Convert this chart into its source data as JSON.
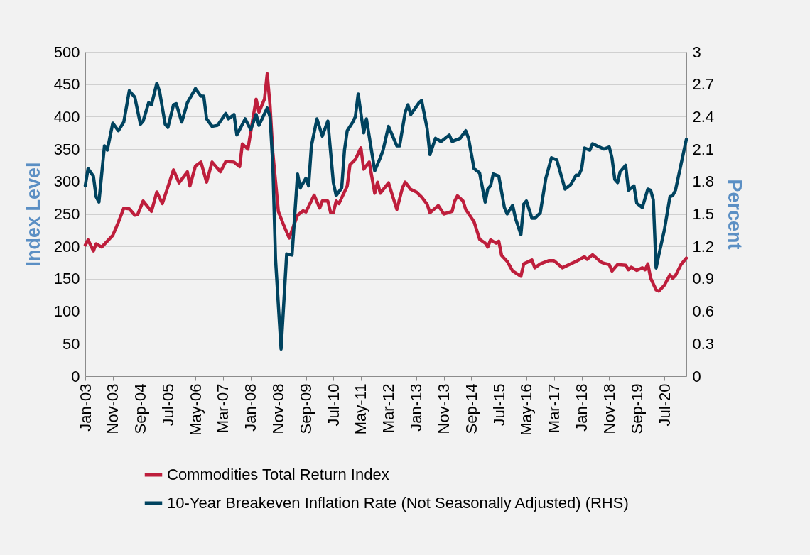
{
  "chart_data": {
    "type": "line",
    "ylabel": "Index Level",
    "y2label": "Percent",
    "ylim": [
      0,
      500
    ],
    "yticks": [
      0,
      50,
      100,
      150,
      200,
      250,
      300,
      350,
      400,
      450,
      500
    ],
    "y2lim": [
      0,
      3
    ],
    "y2ticks": [
      0,
      0.3,
      0.6,
      0.9,
      1.2,
      1.5,
      1.8,
      2.1,
      2.4,
      2.7,
      3
    ],
    "xlim": [
      "2003-01",
      "2021-03"
    ],
    "xticks": [
      {
        "value": "2003-01",
        "label": "Jan-03"
      },
      {
        "value": "2003-11",
        "label": "Nov-03"
      },
      {
        "value": "2004-09",
        "label": "Sep-04"
      },
      {
        "value": "2005-07",
        "label": "Jul-05"
      },
      {
        "value": "2006-05",
        "label": "May-06"
      },
      {
        "value": "2007-03",
        "label": "Mar-07"
      },
      {
        "value": "2008-01",
        "label": "Jan-08"
      },
      {
        "value": "2008-11",
        "label": "Nov-08"
      },
      {
        "value": "2009-09",
        "label": "Sep-09"
      },
      {
        "value": "2010-07",
        "label": "Jul-10"
      },
      {
        "value": "2011-05",
        "label": "May-11"
      },
      {
        "value": "2012-03",
        "label": "Mar-12"
      },
      {
        "value": "2013-01",
        "label": "Jan-13"
      },
      {
        "value": "2013-11",
        "label": "Nov-13"
      },
      {
        "value": "2014-09",
        "label": "Sep-14"
      },
      {
        "value": "2015-07",
        "label": "Jul-15"
      },
      {
        "value": "2016-05",
        "label": "May-16"
      },
      {
        "value": "2017-03",
        "label": "Mar-17"
      },
      {
        "value": "2018-01",
        "label": "Jan-18"
      },
      {
        "value": "2018-11",
        "label": "Nov-18"
      },
      {
        "value": "2019-09",
        "label": "Sep-19"
      },
      {
        "value": "2020-07",
        "label": "Jul-20"
      }
    ],
    "grid": "y",
    "legend": "bottom",
    "series": [
      {
        "name": "Commodities Total Return Index",
        "color": "#be1e3c",
        "x": [
          "2003-01",
          "2003-02",
          "2003-04",
          "2003-05",
          "2003-07",
          "2003-09",
          "2003-11",
          "2004-01",
          "2004-03",
          "2004-05",
          "2004-07",
          "2004-08",
          "2004-10",
          "2005-01",
          "2005-03",
          "2005-05",
          "2005-09",
          "2005-11",
          "2006-02",
          "2006-03",
          "2006-05",
          "2006-07",
          "2006-09",
          "2006-11",
          "2007-02",
          "2007-04",
          "2007-07",
          "2007-09",
          "2007-10",
          "2007-12",
          "2008-03",
          "2008-04",
          "2008-06",
          "2008-07",
          "2008-08",
          "2008-09",
          "2008-11",
          "2009-01",
          "2009-03",
          "2009-06",
          "2009-08",
          "2009-09",
          "2009-12",
          "2010-02",
          "2010-03",
          "2010-05",
          "2010-06",
          "2010-07",
          "2010-08",
          "2010-09",
          "2010-12",
          "2011-01",
          "2011-03",
          "2011-05",
          "2011-06",
          "2011-08",
          "2011-10",
          "2011-11",
          "2011-12",
          "2012-03",
          "2012-04",
          "2012-06",
          "2012-08",
          "2012-09",
          "2012-11",
          "2013-01",
          "2013-03",
          "2013-05",
          "2013-06",
          "2013-09",
          "2013-11",
          "2014-02",
          "2014-03",
          "2014-04",
          "2014-06",
          "2014-07",
          "2014-10",
          "2014-12",
          "2015-02",
          "2015-03",
          "2015-04",
          "2015-06",
          "2015-07",
          "2015-08",
          "2015-10",
          "2015-12",
          "2016-03",
          "2016-04",
          "2016-07",
          "2016-08",
          "2016-10",
          "2017-01",
          "2017-03",
          "2017-06",
          "2017-09",
          "2017-11",
          "2018-02",
          "2018-03",
          "2018-05",
          "2018-08",
          "2018-09",
          "2018-11",
          "2018-12",
          "2019-02",
          "2019-05",
          "2019-06",
          "2019-07",
          "2019-09",
          "2019-11",
          "2019-12",
          "2020-01",
          "2020-02",
          "2020-04",
          "2020-05",
          "2020-07",
          "2020-09",
          "2020-10",
          "2020-11",
          "2021-01",
          "2021-03"
        ],
        "values": [
          202,
          210,
          193,
          204,
          199,
          208,
          217,
          237,
          259,
          258,
          248,
          249,
          270,
          254,
          284,
          266,
          318,
          298,
          315,
          293,
          324,
          330,
          299,
          330,
          315,
          331,
          330,
          323,
          358,
          350,
          427,
          407,
          427,
          466,
          418,
          345,
          254,
          232,
          213,
          248,
          255,
          253,
          279,
          259,
          270,
          270,
          252,
          252,
          270,
          266,
          293,
          326,
          334,
          352,
          319,
          330,
          282,
          299,
          282,
          298,
          284,
          257,
          290,
          299,
          288,
          284,
          276,
          265,
          252,
          263,
          250,
          254,
          270,
          278,
          270,
          257,
          238,
          211,
          205,
          199,
          210,
          205,
          208,
          186,
          177,
          162,
          154,
          173,
          179,
          167,
          173,
          178,
          178,
          167,
          173,
          177,
          184,
          180,
          187,
          176,
          174,
          172,
          162,
          172,
          171,
          164,
          168,
          163,
          167,
          164,
          173,
          151,
          133,
          131,
          140,
          156,
          151,
          155,
          172,
          182
        ]
      },
      {
        "name": "10-Year Breakeven Inflation Rate (Not Seasonally Adjusted) (RHS)",
        "color": "#00435f",
        "axis": "y2",
        "x": [
          "2003-01",
          "2003-02",
          "2003-04",
          "2003-05",
          "2003-06",
          "2003-08",
          "2003-09",
          "2003-11",
          "2004-01",
          "2004-03",
          "2004-05",
          "2004-07",
          "2004-09",
          "2004-10",
          "2004-12",
          "2005-01",
          "2005-03",
          "2005-04",
          "2005-06",
          "2005-07",
          "2005-09",
          "2005-10",
          "2005-12",
          "2006-02",
          "2006-05",
          "2006-07",
          "2006-08",
          "2006-09",
          "2006-11",
          "2007-01",
          "2007-04",
          "2007-05",
          "2007-07",
          "2007-08",
          "2007-11",
          "2008-01",
          "2008-03",
          "2008-04",
          "2008-07",
          "2008-08",
          "2008-09",
          "2008-10",
          "2008-12",
          "2009-02",
          "2009-04",
          "2009-06",
          "2009-07",
          "2009-09",
          "2009-10",
          "2009-11",
          "2010-01",
          "2010-03",
          "2010-05",
          "2010-07",
          "2010-08",
          "2010-10",
          "2010-11",
          "2010-12",
          "2011-02",
          "2011-03",
          "2011-04",
          "2011-06",
          "2011-07",
          "2011-10",
          "2011-12",
          "2012-01",
          "2012-03",
          "2012-06",
          "2012-07",
          "2012-09",
          "2012-10",
          "2012-11",
          "2013-02",
          "2013-03",
          "2013-05",
          "2013-06",
          "2013-08",
          "2013-10",
          "2014-01",
          "2014-02",
          "2014-05",
          "2014-07",
          "2014-08",
          "2014-10",
          "2014-12",
          "2015-02",
          "2015-03",
          "2015-04",
          "2015-05",
          "2015-07",
          "2015-09",
          "2015-10",
          "2015-12",
          "2016-01",
          "2016-03",
          "2016-04",
          "2016-05",
          "2016-07",
          "2016-08",
          "2016-10",
          "2016-12",
          "2017-02",
          "2017-04",
          "2017-07",
          "2017-09",
          "2017-11",
          "2017-12",
          "2018-01",
          "2018-02",
          "2018-04",
          "2018-05",
          "2018-09",
          "2018-11",
          "2018-12",
          "2019-01",
          "2019-02",
          "2019-03",
          "2019-05",
          "2019-06",
          "2019-08",
          "2019-09",
          "2019-11",
          "2020-01",
          "2020-02",
          "2020-03",
          "2020-04",
          "2020-05",
          "2020-07",
          "2020-09",
          "2020-10",
          "2020-11",
          "2021-01",
          "2021-03"
        ],
        "values": [
          1.76,
          1.92,
          1.85,
          1.66,
          1.61,
          2.13,
          2.09,
          2.34,
          2.27,
          2.35,
          2.64,
          2.58,
          2.33,
          2.36,
          2.53,
          2.51,
          2.71,
          2.63,
          2.33,
          2.3,
          2.51,
          2.52,
          2.35,
          2.53,
          2.66,
          2.59,
          2.59,
          2.38,
          2.31,
          2.32,
          2.43,
          2.38,
          2.42,
          2.23,
          2.38,
          2.28,
          2.42,
          2.32,
          2.48,
          2.4,
          1.96,
          1.08,
          0.25,
          1.13,
          1.12,
          1.87,
          1.74,
          1.83,
          1.76,
          2.13,
          2.38,
          2.22,
          2.36,
          1.79,
          1.67,
          1.74,
          2.09,
          2.27,
          2.35,
          2.4,
          2.61,
          2.25,
          2.38,
          1.9,
          2.02,
          2.09,
          2.31,
          2.13,
          2.13,
          2.44,
          2.51,
          2.42,
          2.53,
          2.55,
          2.29,
          2.05,
          2.2,
          2.17,
          2.23,
          2.17,
          2.2,
          2.27,
          2.2,
          1.92,
          1.88,
          1.61,
          1.73,
          1.76,
          1.87,
          1.85,
          1.56,
          1.5,
          1.58,
          1.46,
          1.31,
          1.59,
          1.62,
          1.46,
          1.46,
          1.51,
          1.83,
          2.02,
          2.0,
          1.73,
          1.77,
          1.86,
          1.86,
          1.92,
          2.11,
          2.09,
          2.15,
          2.1,
          2.12,
          2.02,
          1.82,
          1.79,
          1.89,
          1.95,
          1.72,
          1.76,
          1.6,
          1.56,
          1.73,
          1.72,
          1.63,
          1.0,
          1.12,
          1.35,
          1.66,
          1.67,
          1.72,
          1.96,
          2.19
        ]
      }
    ]
  }
}
